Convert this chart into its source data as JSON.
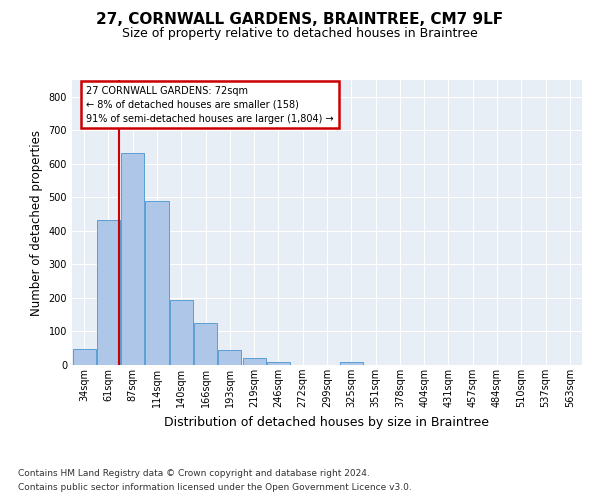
{
  "title1": "27, CORNWALL GARDENS, BRAINTREE, CM7 9LF",
  "title2": "Size of property relative to detached houses in Braintree",
  "xlabel": "Distribution of detached houses by size in Braintree",
  "ylabel": "Number of detached properties",
  "footnote1": "Contains HM Land Registry data © Crown copyright and database right 2024.",
  "footnote2": "Contains public sector information licensed under the Open Government Licence v3.0.",
  "bar_labels": [
    "34sqm",
    "61sqm",
    "87sqm",
    "114sqm",
    "140sqm",
    "166sqm",
    "193sqm",
    "219sqm",
    "246sqm",
    "272sqm",
    "299sqm",
    "325sqm",
    "351sqm",
    "378sqm",
    "404sqm",
    "431sqm",
    "457sqm",
    "484sqm",
    "510sqm",
    "537sqm",
    "563sqm"
  ],
  "bar_heights": [
    48,
    432,
    632,
    490,
    193,
    126,
    46,
    22,
    10,
    0,
    0,
    10,
    0,
    0,
    0,
    0,
    0,
    0,
    0,
    0,
    0
  ],
  "bar_color": "#aec6e8",
  "bar_edgecolor": "#5a9fd4",
  "property_line_color": "#cc0000",
  "annotation_text": "27 CORNWALL GARDENS: 72sqm\n← 8% of detached houses are smaller (158)\n91% of semi-detached houses are larger (1,804) →",
  "annotation_box_color": "#cc0000",
  "ylim": [
    0,
    850
  ],
  "yticks": [
    0,
    100,
    200,
    300,
    400,
    500,
    600,
    700,
    800
  ],
  "background_color": "#e8eef5",
  "title1_fontsize": 11,
  "title2_fontsize": 9,
  "ylabel_fontsize": 8.5,
  "xlabel_fontsize": 9,
  "tick_fontsize": 7,
  "annotation_fontsize": 7,
  "footnote_fontsize": 6.5
}
